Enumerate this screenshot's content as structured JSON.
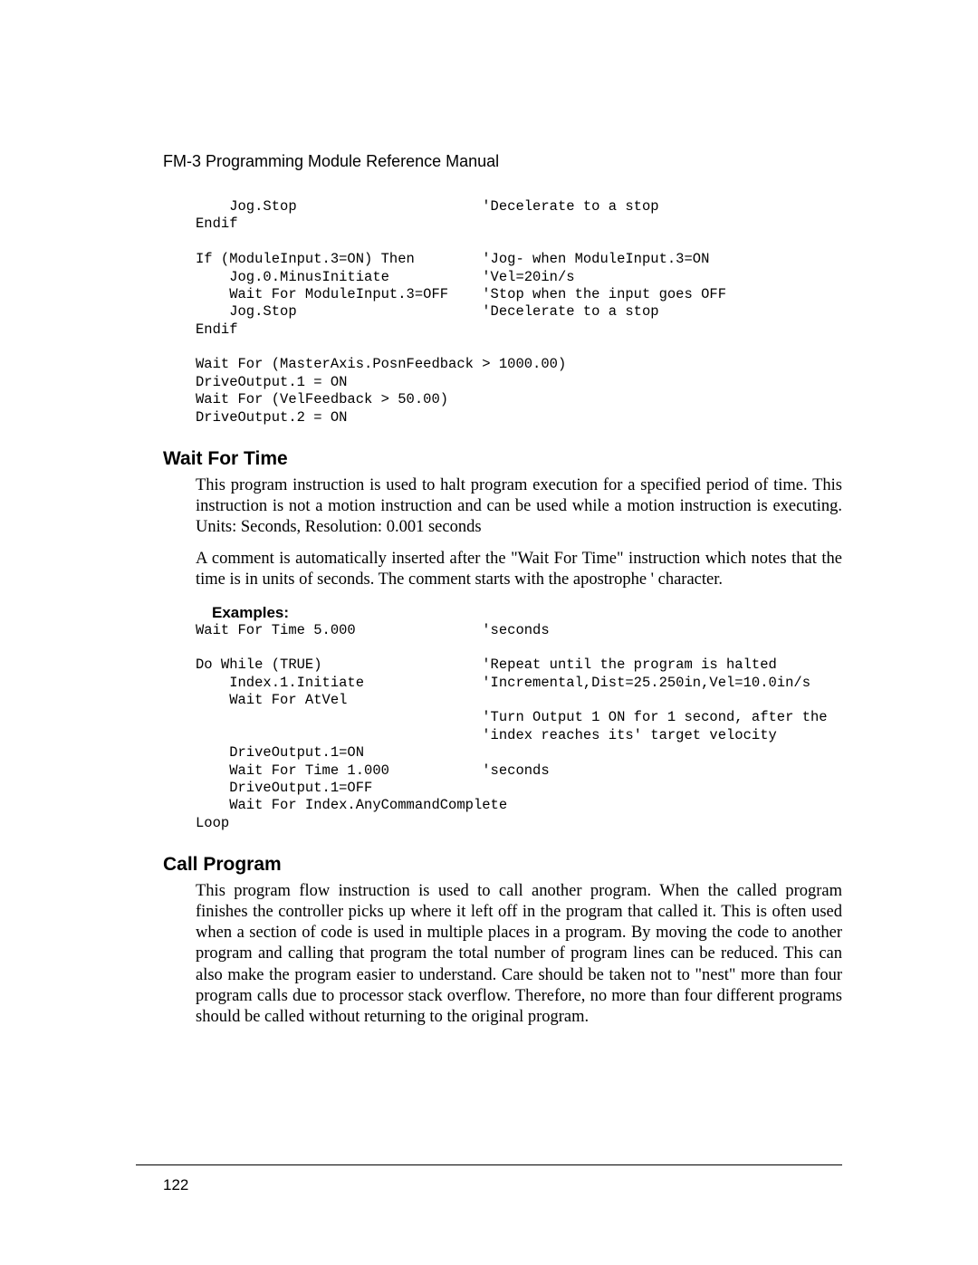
{
  "header": "FM-3 Programming Module Reference Manual",
  "code1": "    Jog.Stop                      'Decelerate to a stop\nEndif\n\nIf (ModuleInput.3=ON) Then        'Jog- when ModuleInput.3=ON\n    Jog.0.MinusInitiate           'Vel=20in/s\n    Wait For ModuleInput.3=OFF    'Stop when the input goes OFF\n    Jog.Stop                      'Decelerate to a stop\nEndif\n\nWait For (MasterAxis.PosnFeedback > 1000.00)\nDriveOutput.1 = ON\nWait For (VelFeedback > 50.00)\nDriveOutput.2 = ON",
  "section1": {
    "title": "Wait For Time",
    "p1": "This program instruction is used to halt program execution for a specified period of time.  This instruction is not a motion instruction and can be used while a motion instruction is executing. Units: Seconds, Resolution: 0.001 seconds",
    "p2": "A comment is automatically inserted after the \"Wait For Time\" instruction which notes that  the time is in units of seconds.  The comment starts with the apostrophe ' character.",
    "examplesLabel": "Examples:",
    "code": "Wait For Time 5.000               'seconds\n\nDo While (TRUE)                   'Repeat until the program is halted\n    Index.1.Initiate              'Incremental,Dist=25.250in,Vel=10.0in/s\n    Wait For AtVel\n                                  'Turn Output 1 ON for 1 second, after the\n                                  'index reaches its' target velocity\n    DriveOutput.1=ON\n    Wait For Time 1.000           'seconds\n    DriveOutput.1=OFF\n    Wait For Index.AnyCommandComplete\nLoop"
  },
  "section2": {
    "title": "Call Program",
    "p1": "This program flow instruction is used to call another program.  When the called program finishes the controller picks up where it left off in the program that called it.  This is often used when a section of code is used in multiple places in a program.  By moving the code to another program and calling that program the total number of program lines can be reduced.  This can also make the program easier to understand.  Care should be taken not to \"nest\" more than four program calls due to processor stack overflow.  Therefore, no more than four different programs should be called without returning to the original program."
  },
  "pageNumber": "122"
}
